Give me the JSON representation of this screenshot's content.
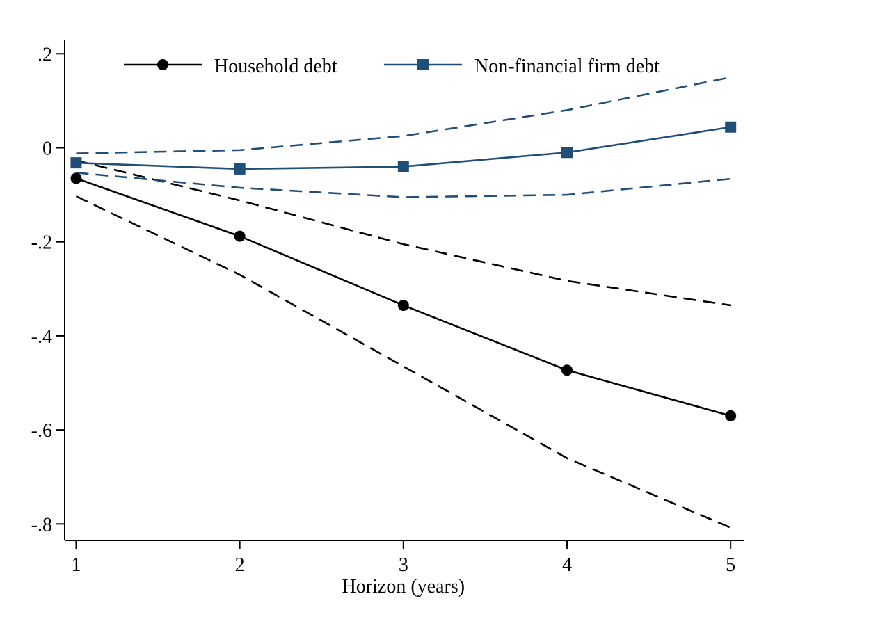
{
  "chart_data": {
    "type": "line",
    "title": "",
    "xlabel": "Horizon (years)",
    "ylabel": "",
    "x": [
      1,
      2,
      3,
      4,
      5
    ],
    "x_tick_labels": [
      "1",
      "2",
      "3",
      "4",
      "5"
    ],
    "xlim": [
      0.93,
      5.08
    ],
    "y_ticks": [
      0.2,
      0,
      -0.2,
      -0.4,
      -0.6,
      -0.8
    ],
    "y_tick_labels": [
      ".2",
      "0",
      "-.2",
      "-.4",
      "-.6",
      "-.8"
    ],
    "ylim": [
      -0.835,
      0.23
    ],
    "grid": false,
    "legend_placement": "top",
    "series": [
      {
        "name": "Household debt",
        "color": "#000000",
        "marker": "circle",
        "values": [
          -0.065,
          -0.188,
          -0.335,
          -0.473,
          -0.57
        ],
        "ci_lower": [
          -0.103,
          -0.27,
          -0.465,
          -0.66,
          -0.808
        ],
        "ci_upper": [
          -0.027,
          -0.112,
          -0.205,
          -0.283,
          -0.335
        ]
      },
      {
        "name": "Non-financial firm debt",
        "color": "#1f4e79",
        "marker": "square",
        "values": [
          -0.032,
          -0.045,
          -0.04,
          -0.01,
          0.044
        ],
        "ci_lower": [
          -0.053,
          -0.085,
          -0.105,
          -0.1,
          -0.066
        ],
        "ci_upper": [
          -0.012,
          -0.005,
          0.025,
          0.08,
          0.15
        ]
      }
    ]
  }
}
